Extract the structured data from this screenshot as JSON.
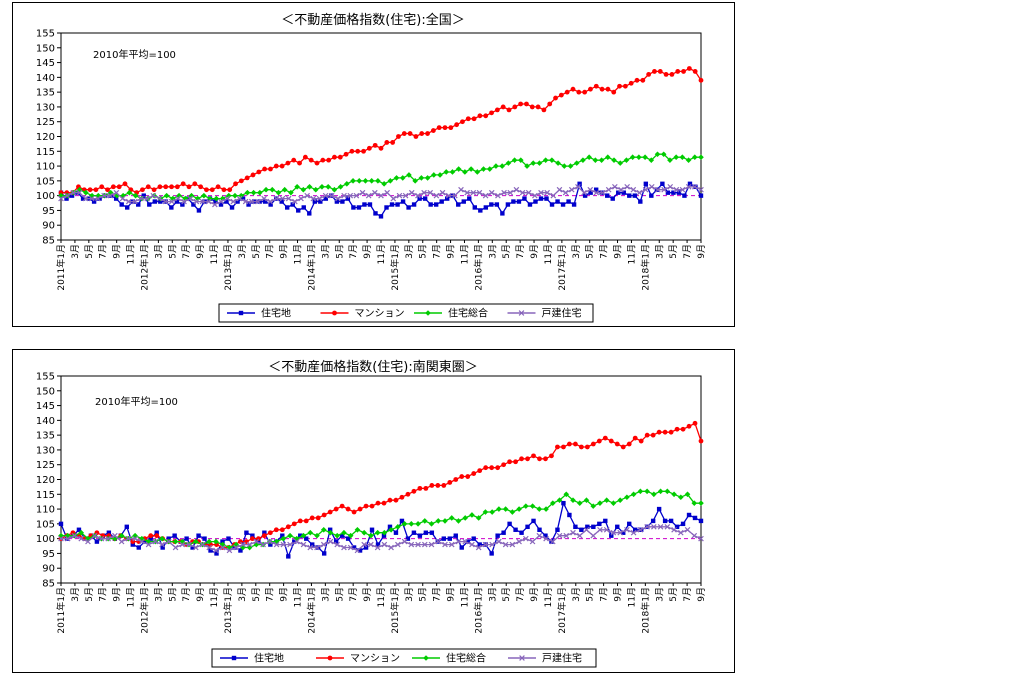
{
  "colors": {
    "house_land": "#0000cc",
    "mansion": "#ff0000",
    "housing_total": "#00cc00",
    "detached": "#8866bb",
    "baseline": "#cc00cc"
  },
  "chart_data": [
    {
      "type": "line",
      "title": "＜不動産価格指数(住宅):全国＞",
      "note": "2010年平均=100",
      "ylim": [
        85,
        155
      ],
      "yticks": [
        85,
        90,
        95,
        100,
        105,
        110,
        115,
        120,
        125,
        130,
        135,
        140,
        145,
        150,
        155
      ],
      "x_labels": [
        "2011年1月",
        "3月",
        "5月",
        "7月",
        "9月",
        "11月",
        "2012年1月",
        "3月",
        "5月",
        "7月",
        "9月",
        "11月",
        "2013年1月",
        "3月",
        "5月",
        "7月",
        "9月",
        "11月",
        "2014年1月",
        "3月",
        "5月",
        "7月",
        "9月",
        "11月",
        "2015年1月",
        "3月",
        "5月",
        "7月",
        "9月",
        "11月",
        "2016年1月",
        "3月",
        "5月",
        "7月",
        "9月",
        "11月",
        "2017年1月",
        "3月",
        "5月",
        "7月",
        "9月",
        "11月",
        "2018年1月",
        "3月",
        "5月",
        "7月",
        "9月"
      ],
      "legend": [
        "住宅地",
        "マンション",
        "住宅総合",
        "戸建住宅"
      ],
      "legend_position": "bottom",
      "grid": false,
      "series": [
        {
          "name": "住宅地",
          "values": [
            101,
            99,
            100,
            101,
            99,
            99,
            98,
            99,
            100,
            100,
            99,
            97,
            96,
            98,
            97,
            100,
            97,
            98,
            98,
            98,
            96,
            98,
            97,
            99,
            97,
            95,
            98,
            99,
            98,
            97,
            98,
            96,
            98,
            99,
            97,
            98,
            98,
            98,
            97,
            99,
            98,
            96,
            97,
            95,
            96,
            94,
            98,
            98,
            99,
            100,
            98,
            98,
            99,
            96,
            96,
            97,
            97,
            94,
            93,
            96,
            97,
            97,
            98,
            96,
            97,
            99,
            99,
            97,
            97,
            98,
            99,
            100,
            97,
            98,
            99,
            96,
            95,
            96,
            97,
            97,
            94,
            97,
            98,
            98,
            99,
            97,
            98,
            99,
            99,
            97,
            98,
            97,
            98,
            97,
            104,
            100,
            101,
            102,
            101,
            100,
            99,
            101,
            101,
            100,
            100,
            98,
            104,
            100,
            102,
            104,
            101,
            101,
            101,
            100,
            104,
            103,
            100
          ]
        },
        {
          "name": "マンション",
          "values": [
            101,
            101,
            101,
            103,
            102,
            102,
            102,
            103,
            102,
            103,
            103,
            104,
            102,
            101,
            102,
            103,
            102,
            103,
            103,
            103,
            103,
            104,
            103,
            104,
            103,
            102,
            102,
            103,
            102,
            102,
            104,
            105,
            106,
            107,
            108,
            109,
            109,
            110,
            110,
            111,
            112,
            111,
            113,
            112,
            111,
            112,
            112,
            113,
            113,
            114,
            115,
            115,
            115,
            116,
            117,
            116,
            118,
            118,
            120,
            121,
            121,
            120,
            121,
            121,
            122,
            123,
            123,
            123,
            124,
            125,
            126,
            126,
            127,
            127,
            128,
            129,
            130,
            129,
            130,
            131,
            131,
            130,
            130,
            129,
            131,
            133,
            134,
            135,
            136,
            135,
            135,
            136,
            137,
            136,
            136,
            135,
            137,
            137,
            138,
            139,
            139,
            141,
            142,
            142,
            141,
            141,
            142,
            142,
            143,
            142,
            139
          ]
        },
        {
          "name": "住宅総合",
          "values": [
            100,
            100,
            101,
            102,
            101,
            100,
            100,
            100,
            101,
            100,
            100,
            101,
            100,
            99,
            99,
            100,
            99,
            100,
            99,
            100,
            99,
            100,
            99,
            100,
            99,
            99,
            99,
            100,
            100,
            100,
            101,
            101,
            101,
            102,
            102,
            101,
            102,
            101,
            103,
            102,
            103,
            102,
            103,
            103,
            102,
            103,
            104,
            105,
            105,
            105,
            105,
            105,
            104,
            105,
            106,
            106,
            107,
            105,
            106,
            106,
            107,
            107,
            108,
            108,
            109,
            108,
            109,
            108,
            109,
            109,
            110,
            110,
            111,
            112,
            112,
            110,
            111,
            111,
            112,
            112,
            111,
            110,
            110,
            111,
            112,
            113,
            112,
            112,
            113,
            112,
            111,
            112,
            113,
            113,
            113,
            112,
            114,
            114,
            112,
            113,
            113,
            112,
            113,
            113
          ]
        },
        {
          "name": "戸建住宅",
          "values": [
            99,
            100,
            101,
            101,
            99,
            99,
            99,
            100,
            100,
            101,
            99,
            98,
            98,
            99,
            99,
            100,
            99,
            98,
            98,
            99,
            98,
            99,
            98,
            98,
            98,
            97,
            98,
            99,
            98,
            99,
            98,
            98,
            98,
            99,
            98,
            99,
            99,
            99,
            98,
            99,
            100,
            99,
            99,
            100,
            100,
            99,
            100,
            100,
            100,
            101,
            100,
            101,
            100,
            101,
            99,
            100,
            100,
            101,
            100,
            101,
            101,
            100,
            101,
            100,
            100,
            102,
            101,
            101,
            101,
            100,
            101,
            100,
            101,
            101,
            102,
            101,
            101,
            100,
            101,
            101,
            100,
            102,
            101,
            102,
            103,
            101,
            102,
            101,
            101,
            102,
            103,
            102,
            103,
            102,
            101,
            102,
            103,
            102,
            102,
            103,
            102,
            102,
            103,
            103,
            102
          ]
        }
      ]
    },
    {
      "type": "line",
      "title": "＜不動産価格指数(住宅):南関東圏＞",
      "note": "2010年平均=100",
      "ylim": [
        85,
        155
      ],
      "yticks": [
        85,
        90,
        95,
        100,
        105,
        110,
        115,
        120,
        125,
        130,
        135,
        140,
        145,
        150,
        155
      ],
      "x_labels": [
        "2011年1月",
        "3月",
        "5月",
        "7月",
        "9月",
        "11月",
        "2012年1月",
        "3月",
        "5月",
        "7月",
        "9月",
        "11月",
        "2013年1月",
        "3月",
        "5月",
        "7月",
        "9月",
        "11月",
        "2014年1月",
        "3月",
        "5月",
        "7月",
        "9月",
        "11月",
        "2015年1月",
        "3月",
        "5月",
        "7月",
        "9月",
        "11月",
        "2016年1月",
        "3月",
        "5月",
        "7月",
        "9月",
        "11月",
        "2017年1月",
        "3月",
        "5月",
        "7月",
        "9月",
        "11月",
        "2018年1月",
        "3月",
        "5月",
        "7月",
        "9月"
      ],
      "legend": [
        "住宅地",
        "マンション",
        "住宅総合",
        "戸建住宅"
      ],
      "legend_position": "bottom",
      "grid": false,
      "series": [
        {
          "name": "住宅地",
          "values": [
            105,
            100,
            101,
            103,
            100,
            101,
            99,
            101,
            102,
            100,
            101,
            104,
            98,
            97,
            99,
            100,
            102,
            97,
            100,
            101,
            99,
            100,
            97,
            101,
            100,
            96,
            95,
            99,
            100,
            97,
            96,
            102,
            101,
            99,
            102,
            98,
            99,
            101,
            94,
            99,
            101,
            100,
            98,
            97,
            95,
            103,
            99,
            101,
            100,
            97,
            96,
            97,
            103,
            98,
            101,
            104,
            102,
            106,
            100,
            102,
            101,
            102,
            102,
            99,
            100,
            100,
            101,
            97,
            99,
            100,
            98,
            98,
            95,
            101,
            102,
            105,
            103,
            102,
            104,
            106,
            103,
            101,
            99,
            103,
            112,
            108,
            104,
            103,
            104,
            104,
            105,
            106,
            101,
            104,
            102,
            105,
            103,
            103,
            104,
            106,
            110,
            106,
            106,
            104,
            105,
            108,
            107,
            106
          ]
        },
        {
          "name": "マンション",
          "values": [
            100,
            101,
            102,
            101,
            100,
            101,
            102,
            101,
            101,
            100,
            101,
            100,
            99,
            99,
            100,
            101,
            101,
            100,
            99,
            99,
            99,
            98,
            99,
            99,
            98,
            98,
            98,
            97,
            97,
            98,
            99,
            99,
            100,
            100,
            101,
            102,
            103,
            103,
            104,
            105,
            106,
            106,
            107,
            107,
            108,
            109,
            110,
            111,
            110,
            109,
            110,
            111,
            111,
            112,
            112,
            113,
            113,
            114,
            115,
            116,
            117,
            117,
            118,
            118,
            118,
            119,
            120,
            121,
            121,
            122,
            123,
            124,
            124,
            124,
            125,
            126,
            126,
            127,
            127,
            128,
            127,
            127,
            128,
            131,
            131,
            132,
            132,
            131,
            131,
            132,
            133,
            134,
            133,
            132,
            131,
            132,
            134,
            133,
            135,
            135,
            136,
            136,
            136,
            137,
            137,
            138,
            139,
            133
          ]
        },
        {
          "name": "住宅総合",
          "values": [
            101,
            101,
            101,
            102,
            100,
            101,
            100,
            100,
            100,
            101,
            100,
            101,
            100,
            99,
            99,
            100,
            99,
            99,
            99,
            98,
            99,
            98,
            99,
            99,
            98,
            97,
            98,
            97,
            97,
            98,
            98,
            99,
            99,
            100,
            101,
            100,
            101,
            102,
            101,
            103,
            102,
            101,
            102,
            101,
            103,
            102,
            101,
            102,
            102,
            103,
            104,
            105,
            105,
            105,
            106,
            105,
            106,
            106,
            107,
            106,
            107,
            108,
            107,
            109,
            109,
            110,
            110,
            109,
            110,
            111,
            111,
            110,
            110,
            112,
            113,
            115,
            113,
            112,
            113,
            111,
            112,
            113,
            112,
            113,
            114,
            115,
            116,
            116,
            115,
            116,
            116,
            115,
            114,
            115,
            112,
            112
          ]
        },
        {
          "name": "戸建住宅",
          "values": [
            100,
            100,
            101,
            100,
            99,
            101,
            100,
            100,
            101,
            99,
            100,
            100,
            99,
            98,
            99,
            98,
            99,
            97,
            98,
            98,
            97,
            98,
            97,
            96,
            97,
            96,
            97,
            98,
            98,
            99,
            98,
            99,
            98,
            98,
            98,
            99,
            98,
            97,
            97,
            98,
            99,
            98,
            97,
            97,
            96,
            98,
            98,
            97,
            98,
            97,
            98,
            99,
            98,
            98,
            98,
            98,
            99,
            98,
            98,
            99,
            99,
            98,
            97,
            98,
            98,
            99,
            98,
            98,
            99,
            100,
            99,
            101,
            100,
            99,
            101,
            101,
            102,
            101,
            103,
            101,
            103,
            103,
            102,
            102,
            103,
            102,
            103,
            104,
            104,
            104,
            104,
            103,
            102,
            103,
            101,
            100
          ]
        }
      ]
    }
  ]
}
